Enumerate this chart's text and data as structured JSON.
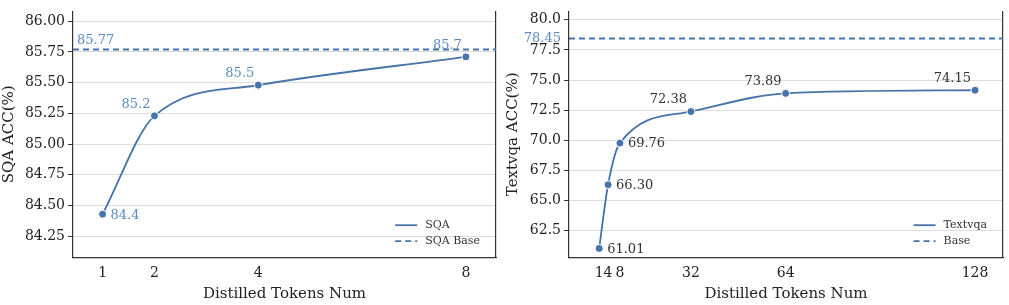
{
  "chart_data": [
    {
      "type": "line",
      "xlabel": "Distilled Tokens Num",
      "ylabel": "SQA ACC(%)",
      "xlim": [
        0.43,
        8.58
      ],
      "xticks": [
        1,
        2,
        4,
        8
      ],
      "ylim": [
        84.08,
        86.08
      ],
      "yticks": [
        {
          "value": 84.25,
          "label": "84.25"
        },
        {
          "value": 84.5,
          "label": "84.50"
        },
        {
          "value": 84.75,
          "label": "84.75"
        },
        {
          "value": 85,
          "label": "85.00"
        },
        {
          "value": 85.25,
          "label": "85.25"
        },
        {
          "value": 85.5,
          "label": "85.50"
        },
        {
          "value": 85.75,
          "label": "85.75"
        },
        {
          "value": 86,
          "label": "86.00"
        }
      ],
      "grid": "y",
      "legend": "bottom right",
      "series": [
        {
          "name": "SQA",
          "color": "#4673a8",
          "x": [
            1,
            2,
            4,
            8
          ],
          "values": [
            84.43,
            85.23,
            85.48,
            85.71
          ],
          "value_labels": [
            "84.4",
            "85.2",
            "85.5",
            "85.7"
          ],
          "marker": "circle",
          "line_style": "solid"
        },
        {
          "name": "SQA Base",
          "color": "#4673a8",
          "x": [
            0.43,
            8.58
          ],
          "values": [
            85.77,
            85.77
          ],
          "value_labels": [
            "85.77",
            null
          ],
          "marker": "none",
          "line_style": "dashed"
        }
      ]
    },
    {
      "type": "line",
      "xlabel": "Distilled Tokens Num",
      "ylabel": "Textvqa ACC(%)",
      "xlim": [
        -9.2,
        137.45
      ],
      "xticks": [
        1,
        4,
        8,
        32,
        64,
        128
      ],
      "ylim": [
        60.28,
        80.7
      ],
      "yticks": [
        {
          "value": 62.5,
          "label": "62.5"
        },
        {
          "value": 65,
          "label": "65.0"
        },
        {
          "value": 67.5,
          "label": "67.5"
        },
        {
          "value": 70,
          "label": "70.0"
        },
        {
          "value": 72.5,
          "label": "72.5"
        },
        {
          "value": 75,
          "label": "75.0"
        },
        {
          "value": 77.5,
          "label": "77.5"
        },
        {
          "value": 80,
          "label": "80.0"
        }
      ],
      "grid": "y",
      "legend": "bottom right",
      "series": [
        {
          "name": "Textvqa",
          "color": "#4673a8",
          "x": [
            1,
            4,
            8,
            32,
            64,
            128
          ],
          "values": [
            61.01,
            66.3,
            69.76,
            72.38,
            73.89,
            74.15
          ],
          "value_labels": [
            "61.01",
            "66.30",
            "69.76",
            "72.38",
            "73.89",
            "74.15"
          ],
          "marker": "circle",
          "line_style": "solid"
        },
        {
          "name": "Base",
          "color": "#4673a8",
          "x": [
            -9.2,
            137.45
          ],
          "values": [
            78.45,
            78.45
          ],
          "value_labels": [
            "78.45",
            null
          ],
          "marker": "none",
          "line_style": "dashed"
        }
      ]
    }
  ]
}
